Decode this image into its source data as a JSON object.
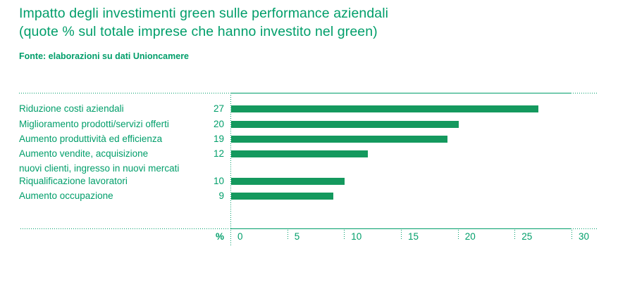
{
  "header": {
    "title_line1": "Impatto degli investimenti green sulle performance aziendali",
    "title_line2": "(quote % sul totale imprese che hanno investito nel green)",
    "source": "Fonte: elaborazioni su dati Unioncamere"
  },
  "colors": {
    "text_green": "#009e6a",
    "bar_green": "#14995e"
  },
  "chart_data": {
    "type": "bar",
    "orientation": "horizontal",
    "title": "Impatto degli investimenti green sulle performance aziendali (quote % sul totale imprese che hanno investito nel green)",
    "categories": [
      "Riduzione costi aziendali",
      "Miglioramento prodotti/servizi offerti",
      "Aumento produttività ed efficienza",
      "Aumento vendite, acquisizione nuovi clienti, ingresso in nuovi mercati",
      "Riqualificazione lavoratori",
      "Aumento occupazione"
    ],
    "values": [
      27,
      20,
      19,
      12,
      10,
      9
    ],
    "rows": [
      {
        "label_lines": [
          "Riduzione costi aziendali"
        ],
        "value": 27
      },
      {
        "label_lines": [
          "Miglioramento prodotti/servizi offerti"
        ],
        "value": 20
      },
      {
        "label_lines": [
          "Aumento produttività ed efficienza"
        ],
        "value": 19
      },
      {
        "label_lines": [
          "Aumento vendite, acquisizione",
          "nuovi clienti, ingresso in nuovi mercati"
        ],
        "value": 12
      },
      {
        "label_lines": [
          "Riqualificazione lavoratori"
        ],
        "value": 10
      },
      {
        "label_lines": [
          "Aumento occupazione"
        ],
        "value": 9
      }
    ],
    "xlabel": "%",
    "xlim": [
      0,
      30
    ],
    "xticks": [
      0,
      5,
      10,
      15,
      20,
      25,
      30
    ],
    "grid": false,
    "legend": "none"
  }
}
